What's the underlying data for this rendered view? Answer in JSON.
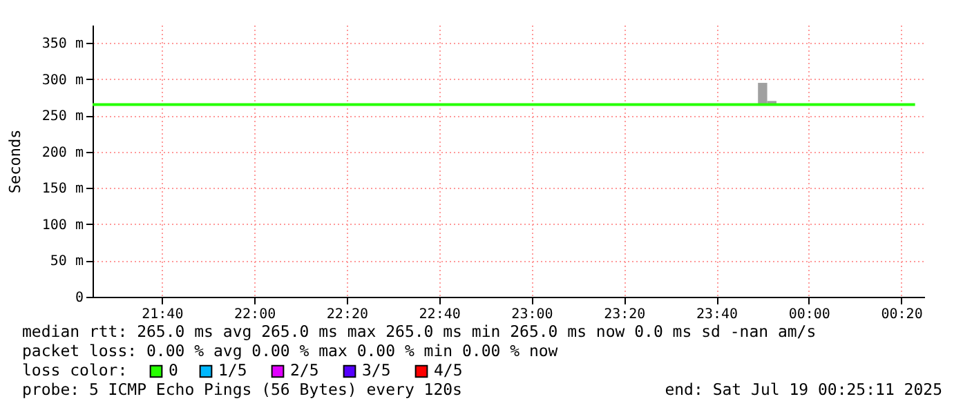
{
  "chart_data": {
    "type": "line",
    "ylabel": "Seconds",
    "xlim": [
      "2025-07-18T21:25",
      "2025-07-19T00:25"
    ],
    "xticks": [
      {
        "value": "2025-07-18T21:40",
        "label": "21:40"
      },
      {
        "value": "2025-07-18T22:00",
        "label": "22:00"
      },
      {
        "value": "2025-07-18T22:20",
        "label": "22:20"
      },
      {
        "value": "2025-07-18T22:40",
        "label": "22:40"
      },
      {
        "value": "2025-07-18T23:00",
        "label": "23:00"
      },
      {
        "value": "2025-07-18T23:20",
        "label": "23:20"
      },
      {
        "value": "2025-07-18T23:40",
        "label": "23:40"
      },
      {
        "value": "2025-07-19T00:00",
        "label": "00:00"
      },
      {
        "value": "2025-07-19T00:20",
        "label": "00:20"
      }
    ],
    "ylim": [
      0,
      375
    ],
    "yticks": [
      0,
      {
        "value": 50,
        "label": "50 m"
      },
      {
        "value": 100,
        "label": "100 m"
      },
      {
        "value": 150,
        "label": "150 m"
      },
      {
        "value": 200,
        "label": "200 m"
      },
      {
        "value": 250,
        "label": "250 m"
      },
      {
        "value": 300,
        "label": "300 m"
      },
      {
        "value": 350,
        "label": "350 m"
      }
    ],
    "grid": true,
    "legend": "bottom",
    "legend_title": "loss color:",
    "series": [
      {
        "type": "bar",
        "color": "#a0a0a0",
        "x": [
          "2025-07-18T23:49",
          "2025-07-18T23:51"
        ],
        "base": [
          265,
          265
        ],
        "values": [
          30,
          5
        ]
      },
      {
        "name": "0",
        "color": "#26ff00",
        "x": [
          "2025-07-18T21:25",
          "2025-07-19T00:23"
        ],
        "values": [
          265,
          265
        ]
      },
      {
        "name": "1/5",
        "color": "#00b8ff"
      },
      {
        "name": "2/5",
        "color": "#e000ff"
      },
      {
        "name": "3/5",
        "color": "#5500ff"
      },
      {
        "name": "4/5",
        "color": "#ff0000"
      }
    ],
    "annotations": [
      "median rtt:  265.0 ms avg  265.0 ms max  265.0 ms min  265.0 ms now  0.0 ms sd  -nan   am/s",
      "packet loss: 0.00 % avg  0.00 % max  0.00 % min  0.00 % now",
      "probe:       5 ICMP Echo Pings (56 Bytes) every 120s",
      "end: Sat Jul 19 00:25:11 2025"
    ]
  }
}
